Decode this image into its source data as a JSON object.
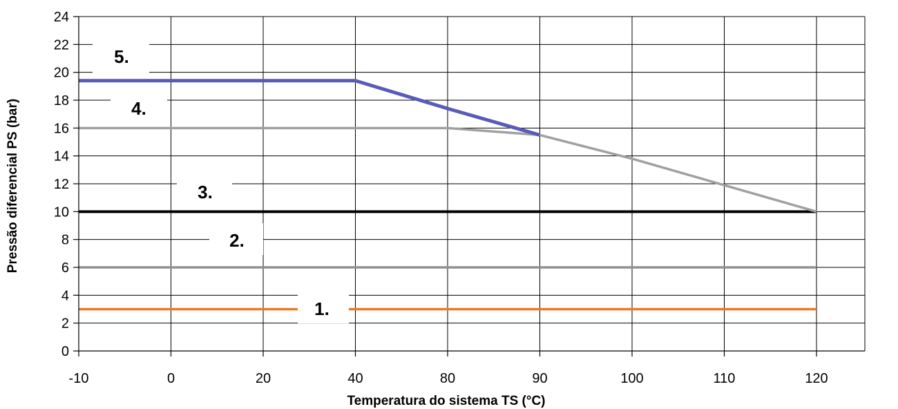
{
  "chart_data": {
    "type": "line",
    "title": "",
    "xlabel": "Temperatura do sistema TS (°C)",
    "ylabel": "Pressão diferencial PS (bar)",
    "x_categories": [
      "-10",
      "0",
      "20",
      "40",
      "80",
      "90",
      "100",
      "110",
      "120"
    ],
    "ylim": [
      0,
      24
    ],
    "y_ticks": [
      0,
      2,
      4,
      6,
      8,
      10,
      12,
      14,
      16,
      18,
      20,
      22,
      24
    ],
    "grid": true,
    "series": [
      {
        "label": "1.",
        "color": "#f07820",
        "x": [
          "-10",
          "0",
          "20",
          "40",
          "80",
          "90",
          "100",
          "110",
          "120"
        ],
        "values": [
          3,
          3,
          3,
          3,
          3,
          3,
          3,
          3,
          3
        ]
      },
      {
        "label": "2.",
        "color": "#909090",
        "x": [
          "-10",
          "0",
          "20",
          "40",
          "80",
          "90",
          "100",
          "110",
          "120"
        ],
        "values": [
          6,
          6,
          6,
          6,
          6,
          6,
          6,
          6,
          6
        ]
      },
      {
        "label": "3.",
        "color": "#000000",
        "x": [
          "-10",
          "0",
          "20",
          "40",
          "80",
          "90",
          "100",
          "110",
          "120"
        ],
        "values": [
          10,
          10,
          10,
          10,
          10,
          10,
          10,
          10,
          10
        ]
      },
      {
        "label": "4.",
        "color": "#a0a0a0",
        "x": [
          "-10",
          "0",
          "20",
          "40",
          "80",
          "90",
          "100",
          "110",
          "120"
        ],
        "values": [
          16,
          16,
          16,
          16,
          16,
          15.5,
          13.8,
          11.9,
          10
        ]
      },
      {
        "label": "5.",
        "color": "#5a5ab8",
        "x": [
          "-10",
          "0",
          "20",
          "40",
          "80",
          "90"
        ],
        "values": [
          19.4,
          19.4,
          19.4,
          19.4,
          17.4,
          15.5
        ]
      }
    ]
  }
}
